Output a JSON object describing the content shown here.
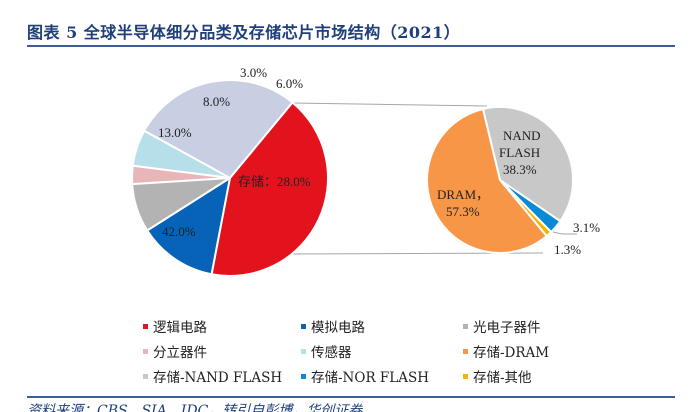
{
  "title": "图表 5  全球半导体细分品类及存储芯片市场结构（2021）",
  "source": "资料来源：CBS、SIA、IDC，转引自彭博，华创证券",
  "chart_data": [
    {
      "type": "pie",
      "name": "全球半导体细分品类",
      "slices": [
        {
          "label": "存储",
          "value": 28.0,
          "text": "存储：28.0%",
          "color": "#c9cfe3"
        },
        {
          "label": "传感器",
          "value": 6.0,
          "text": "6.0%",
          "color": "#b7dfea"
        },
        {
          "label": "分立器件",
          "value": 3.0,
          "text": "3.0%",
          "color": "#e8b5b8"
        },
        {
          "label": "光电子器件",
          "value": 8.0,
          "text": "8.0%",
          "color": "#b3b3b3"
        },
        {
          "label": "模拟电路",
          "value": 13.0,
          "text": "13.0%",
          "color": "#0663b7"
        },
        {
          "label": "逻辑电路",
          "value": 42.0,
          "text": "42.0%",
          "color": "#e3131e"
        }
      ]
    },
    {
      "type": "pie",
      "name": "存储芯片市场结构",
      "slices": [
        {
          "label": "存储-NAND FLASH",
          "value": 38.3,
          "text1": "NAND",
          "text2": "FLASH",
          "text3": "38.3%",
          "color": "#c8c8c8"
        },
        {
          "label": "存储-NOR FLASH",
          "value": 3.1,
          "text": "3.1%",
          "color": "#0a89d6"
        },
        {
          "label": "存储-其他",
          "value": 1.3,
          "text": "1.3%",
          "color": "#f5b400"
        },
        {
          "label": "存储-DRAM",
          "value": 57.3,
          "text1": "DRAM，",
          "text2": "57.3%",
          "color": "#f79646"
        }
      ]
    }
  ],
  "legend": [
    {
      "label": "逻辑电路",
      "color": "#e3131e"
    },
    {
      "label": "模拟电路",
      "color": "#0663b7"
    },
    {
      "label": "光电子器件",
      "color": "#b3b3b3"
    },
    {
      "label": "分立器件",
      "color": "#e8b5b8"
    },
    {
      "label": "传感器",
      "color": "#b7dfea"
    },
    {
      "label": "存储-DRAM",
      "color": "#f79646"
    },
    {
      "label": "存储-NAND FLASH",
      "color": "#c8c8c8"
    },
    {
      "label": "存储-NOR FLASH",
      "color": "#0a89d6"
    },
    {
      "label": "存储-其他",
      "color": "#f5b400"
    }
  ]
}
